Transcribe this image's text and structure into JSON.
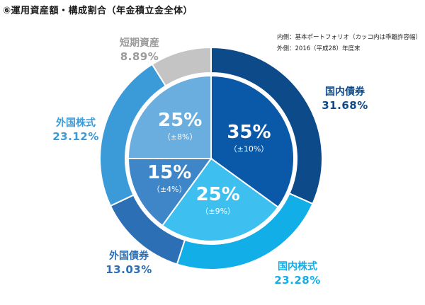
{
  "title": "⑥運用資産額・構成割合（年金積立金全体）",
  "notes": {
    "inner": "内側：基本ポートフォリオ（カッコ内は乖離許容幅）",
    "outer": "外側：2016（平成28）年度末"
  },
  "chart_data": {
    "type": "pie",
    "subtype": "double-donut",
    "inner": [
      {
        "category": "国内債券",
        "value": 35,
        "label": "35%",
        "range": "（±10%）",
        "color": "#0a58a8"
      },
      {
        "category": "国内株式",
        "value": 25,
        "label": "25%",
        "range": "（±9%）",
        "color": "#3dc0ef"
      },
      {
        "category": "外国債券",
        "value": 15,
        "label": "15%",
        "range": "（±4%）",
        "color": "#3f86c9"
      },
      {
        "category": "外国株式",
        "value": 25,
        "label": "25%",
        "range": "（±8%）",
        "color": "#6aaee0"
      }
    ],
    "outer": [
      {
        "category": "国内債券",
        "value": 31.68,
        "label": "31.68%",
        "color": "#0d4a8a"
      },
      {
        "category": "国内株式",
        "value": 23.28,
        "label": "23.28%",
        "color": "#12aee8"
      },
      {
        "category": "外国債券",
        "value": 13.03,
        "label": "13.03%",
        "color": "#2c6fb5"
      },
      {
        "category": "外国株式",
        "value": 23.12,
        "label": "23.12%",
        "color": "#3b9ad8"
      },
      {
        "category": "短期資産",
        "value": 8.89,
        "label": "8.89%",
        "color": "#c4c4c4"
      }
    ],
    "label_colors": {
      "国内債券": "#0d4a8a",
      "国内株式": "#12aee8",
      "外国債券": "#2c6fb5",
      "外国株式": "#3b9ad8",
      "短期資産": "#9b9b9b"
    }
  }
}
